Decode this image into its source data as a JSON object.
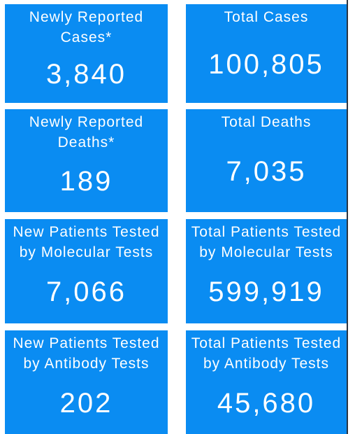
{
  "tiles": [
    {
      "label": "Newly Reported Cases*",
      "value": "3,840"
    },
    {
      "label": "Total Cases",
      "value": "100,805"
    },
    {
      "label": "Newly Reported Deaths*",
      "value": "189"
    },
    {
      "label": "Total Deaths",
      "value": "7,035"
    },
    {
      "label": "New Patients Tested by Molecular Tests",
      "value": "7,066"
    },
    {
      "label": "Total Patients Tested by Molecular Tests",
      "value": "599,919"
    },
    {
      "label": "New Patients Tested by Antibody Tests",
      "value": "202"
    },
    {
      "label": "Total Patients Tested by Antibody Tests",
      "value": "45,680"
    }
  ]
}
